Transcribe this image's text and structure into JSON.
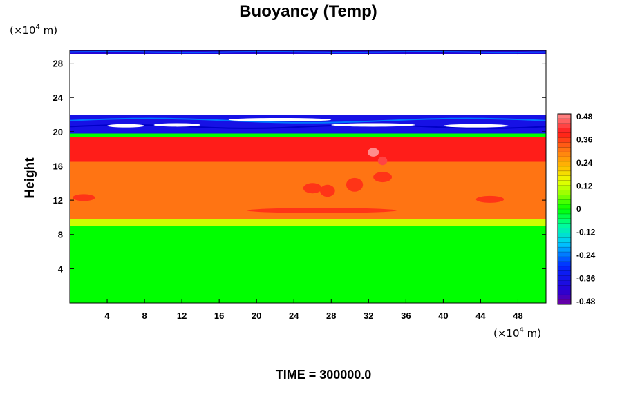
{
  "chart_data": {
    "type": "heatmap",
    "title": "Buoyancy (Temp)",
    "ylabel": "Height",
    "xlabel": "",
    "x_unit": {
      "pre": "(×10",
      "exp": "4",
      "post": " m)"
    },
    "y_unit": {
      "pre": "(×10",
      "exp": "4",
      "post": " m)"
    },
    "xlim": [
      0,
      51
    ],
    "ylim": [
      0,
      29.5
    ],
    "x_ticks": [
      4,
      8,
      12,
      16,
      20,
      24,
      28,
      32,
      36,
      40,
      44,
      48
    ],
    "y_ticks": [
      4,
      8,
      12,
      16,
      20,
      24,
      28
    ],
    "x_tick_labels": [
      "4",
      "8",
      "12",
      "16",
      "20",
      "24",
      "28",
      "32",
      "36",
      "40",
      "44",
      "48"
    ],
    "y_tick_labels": [
      "4",
      "8",
      "12",
      "16",
      "20",
      "24",
      "28"
    ],
    "colorbar": {
      "min": -0.48,
      "max": 0.48,
      "ticks": [
        -0.48,
        -0.36,
        -0.24,
        -0.12,
        0,
        0.12,
        0.24,
        0.36,
        0.48
      ],
      "tick_labels": [
        "-0.48",
        "-0.36",
        "-0.24",
        "-0.12",
        "0",
        "0.12",
        "0.24",
        "0.36",
        "0.48"
      ],
      "levels": 40
    },
    "bands": [
      {
        "y0": 0,
        "y1": 9.0,
        "value": 0.0
      },
      {
        "y0": 9.0,
        "y1": 9.8,
        "value": 0.12
      },
      {
        "y0": 9.8,
        "y1": 16.5,
        "value": 0.3
      },
      {
        "y0": 16.5,
        "y1": 19.4,
        "value": 0.38
      },
      {
        "y0": 19.4,
        "y1": 19.8,
        "value": 0.0
      },
      {
        "y0": 19.8,
        "y1": 22.0,
        "value": -0.36
      },
      {
        "y0": 22.0,
        "y1": 29.1,
        "value": null
      },
      {
        "y0": 29.1,
        "y1": 29.5,
        "value": -0.4
      }
    ],
    "footer": "TIME = 300000.0"
  }
}
